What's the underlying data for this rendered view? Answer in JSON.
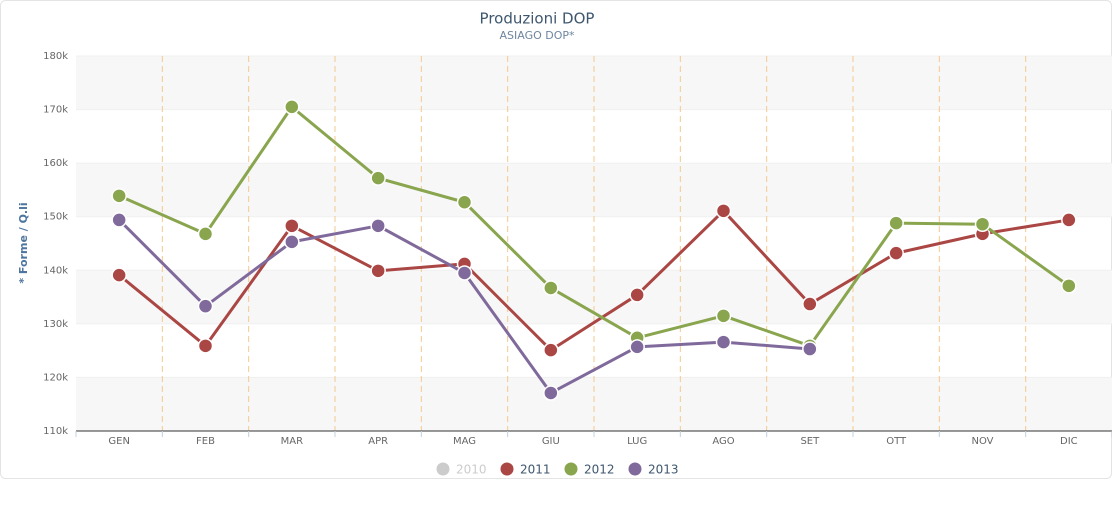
{
  "chart_data": {
    "type": "line",
    "title": "Produzioni DOP",
    "subtitle": "ASIAGO DOP*",
    "y_label": "* Forme / Q.li",
    "categories": [
      "GEN",
      "FEB",
      "MAR",
      "APR",
      "MAG",
      "GIU",
      "LUG",
      "AGO",
      "SET",
      "OTT",
      "NOV",
      "DIC"
    ],
    "series": [
      {
        "name": "2010",
        "color": "#cccccc",
        "visible": false,
        "values": [
          null,
          null,
          null,
          null,
          null,
          null,
          null,
          null,
          null,
          null,
          null,
          null
        ]
      },
      {
        "name": "2011",
        "color": "#aa4643",
        "visible": true,
        "values": [
          139100,
          125900,
          148300,
          139900,
          141200,
          125100,
          135400,
          151100,
          133700,
          143200,
          146800,
          149400
        ]
      },
      {
        "name": "2012",
        "color": "#89a54e",
        "visible": true,
        "values": [
          153900,
          146800,
          170500,
          157200,
          152700,
          136700,
          127400,
          131500,
          125900,
          148800,
          148600,
          137100
        ]
      },
      {
        "name": "2013",
        "color": "#80699b",
        "visible": true,
        "values": [
          149400,
          133300,
          145300,
          148300,
          139500,
          117100,
          125700,
          126600,
          125300,
          null,
          null,
          null
        ]
      }
    ],
    "ylim": [
      110000,
      180000
    ],
    "yticks": [
      {
        "value": 110000,
        "label": "110k"
      },
      {
        "value": 120000,
        "label": "120k"
      },
      {
        "value": 130000,
        "label": "130k"
      },
      {
        "value": 140000,
        "label": "140k"
      },
      {
        "value": 150000,
        "label": "150k"
      },
      {
        "value": 160000,
        "label": "160k"
      },
      {
        "value": 170000,
        "label": "170k"
      },
      {
        "value": 180000,
        "label": "180k"
      }
    ],
    "legend_position": "bottom"
  }
}
